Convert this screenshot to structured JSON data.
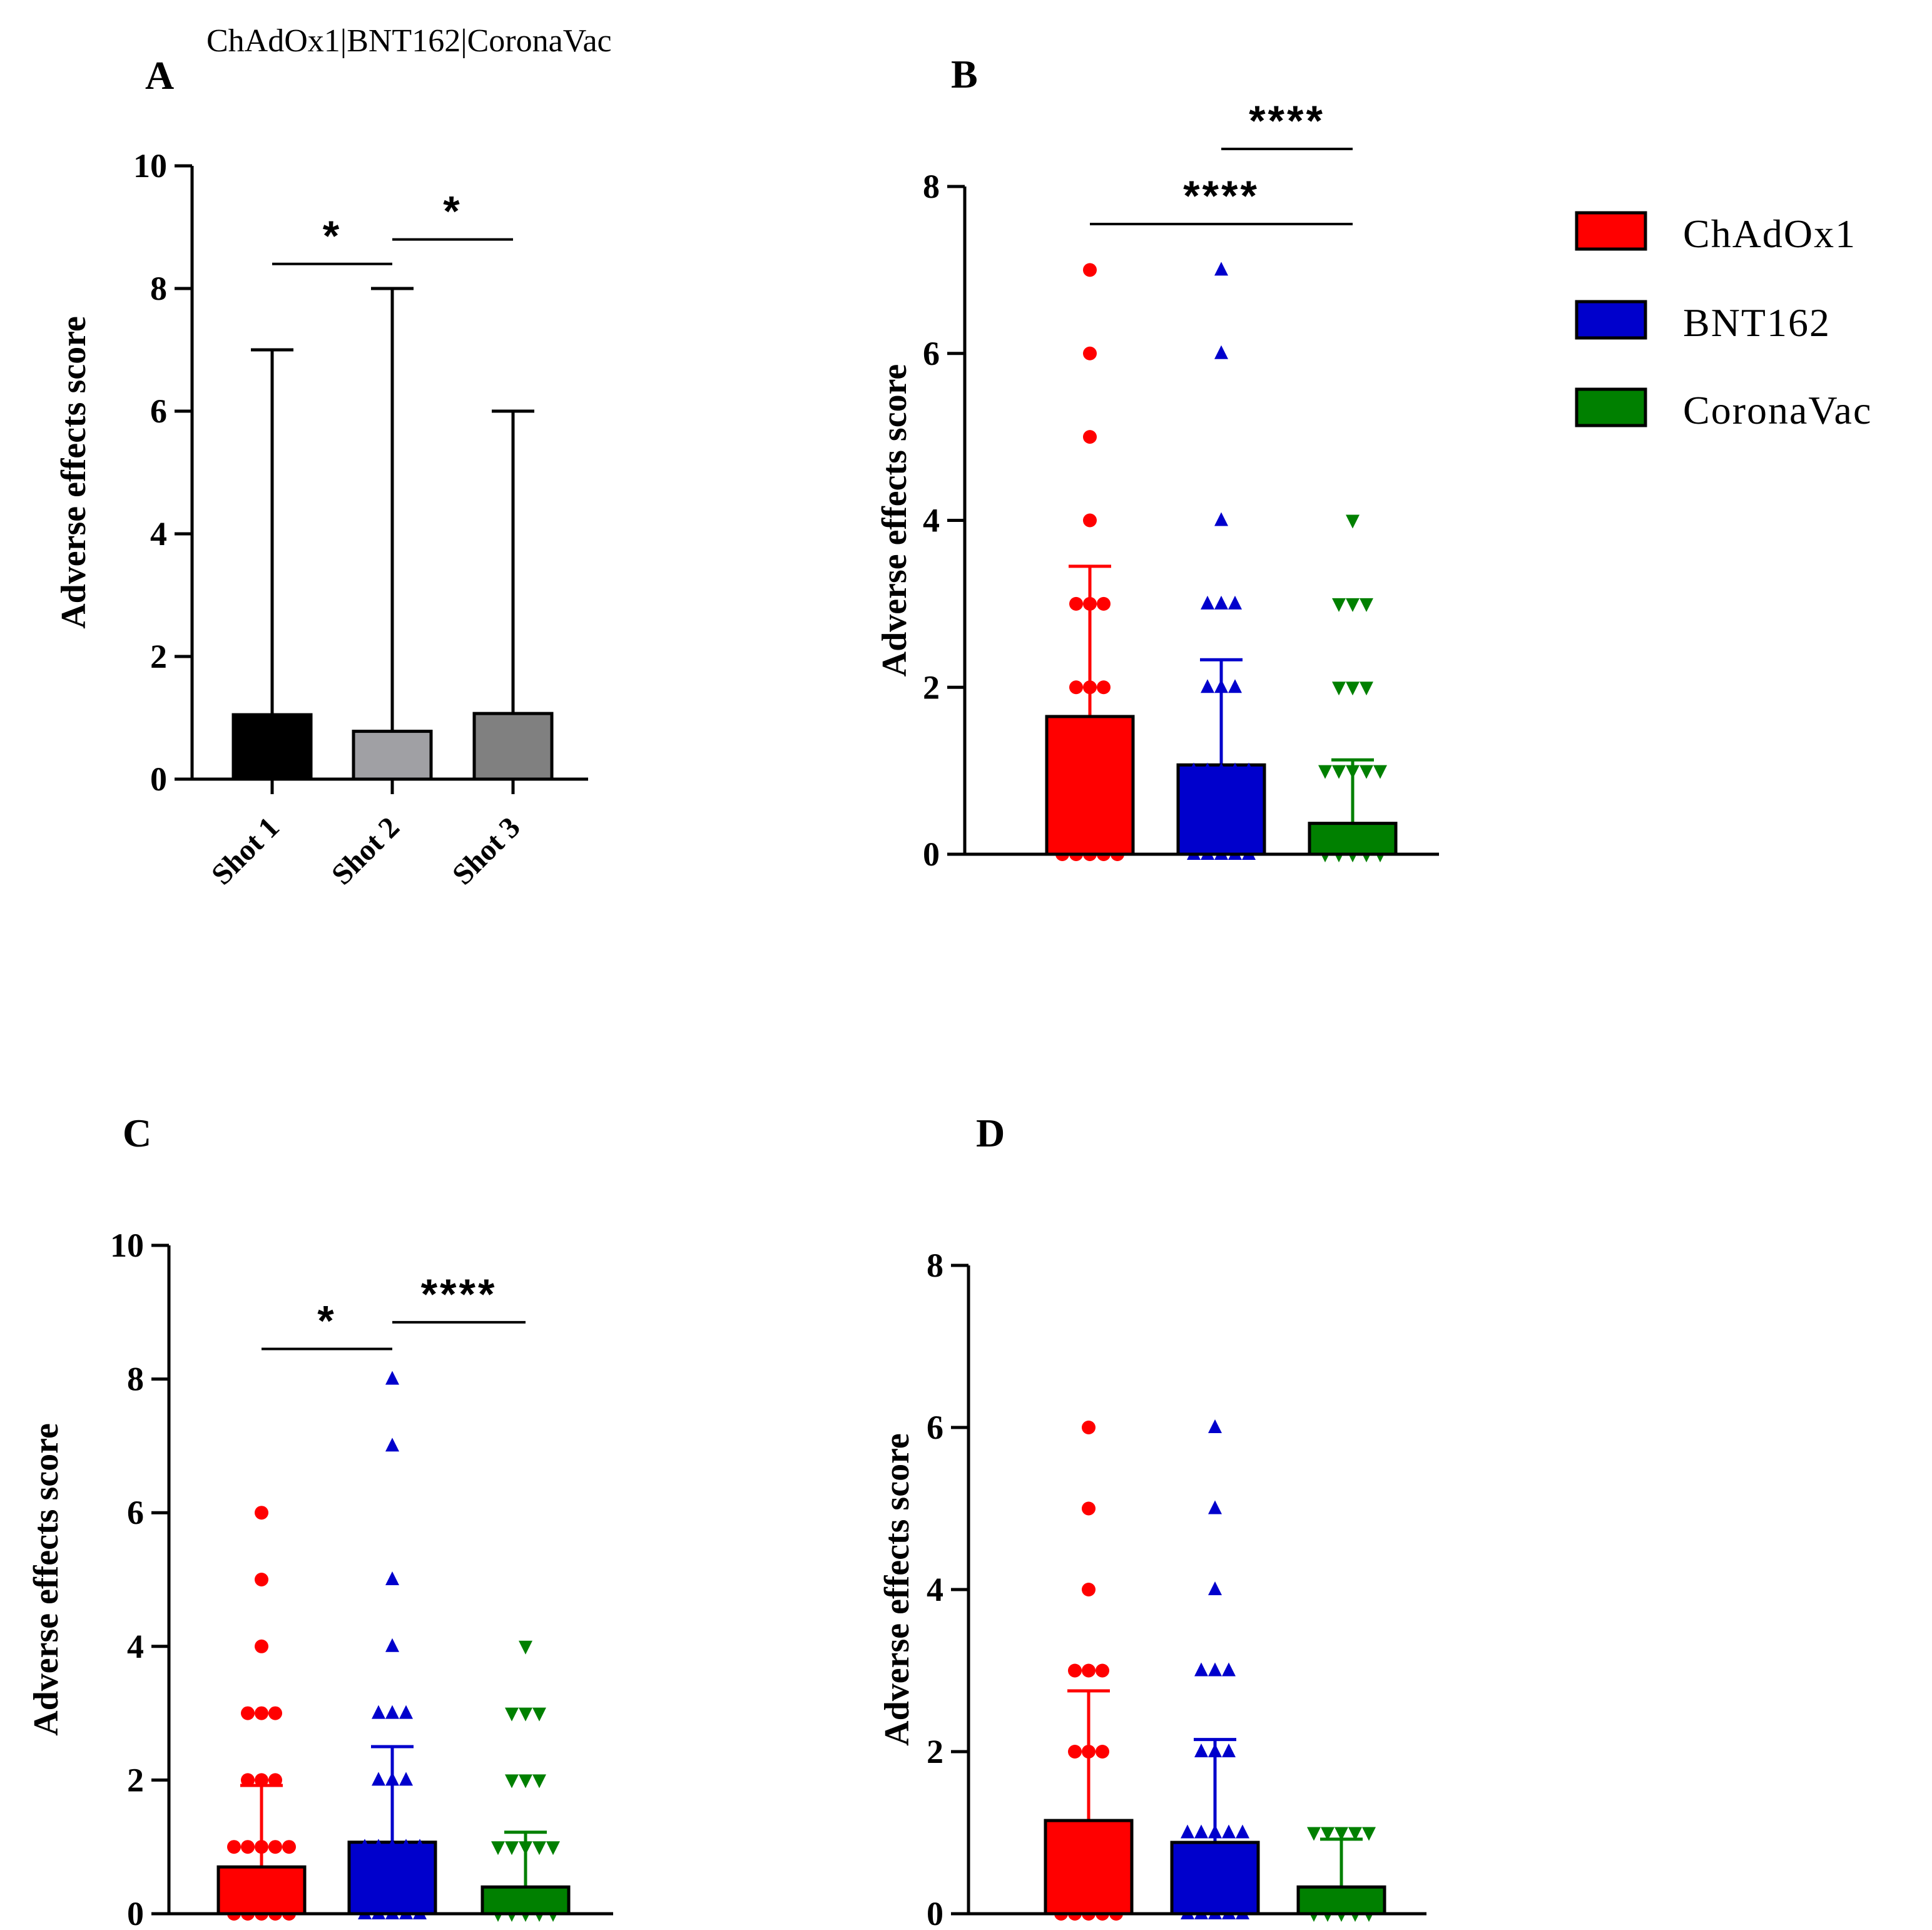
{
  "figure": {
    "subtitle": "ChAdOx1|BNT162|CoronaVac"
  },
  "legend": {
    "entries": [
      {
        "label": "ChAdOx1",
        "color": "#ff0000"
      },
      {
        "label": "BNT162",
        "color": "#0000cc"
      },
      {
        "label": "CoronaVac",
        "color": "#008000"
      }
    ]
  },
  "chart_data": [
    {
      "panel": "A",
      "type": "bar",
      "title": "",
      "ylabel": "Adverse effects score",
      "xlabel": "",
      "ylim": [
        0,
        10
      ],
      "yticks": [
        0,
        2,
        4,
        6,
        8,
        10
      ],
      "categories": [
        "Shot 1",
        "Shot 2",
        "Shot 3"
      ],
      "values": [
        1.05,
        0.78,
        1.07
      ],
      "error_top": [
        7,
        8,
        6
      ],
      "colors": [
        "#000000",
        "#a0a0a4",
        "#808080"
      ],
      "significance": [
        {
          "from": 0,
          "to": 1,
          "label": "*",
          "y": 8.4
        },
        {
          "from": 1,
          "to": 2,
          "label": "*",
          "y": 8.8
        }
      ]
    },
    {
      "panel": "B",
      "type": "bar",
      "title": "",
      "ylabel": "Adverse effects score",
      "xlabel": "",
      "ylim": [
        0,
        8
      ],
      "yticks": [
        0,
        2,
        4,
        6,
        8
      ],
      "categories": [
        "ChAdOx1",
        "BNT162",
        "CoronaVac"
      ],
      "values": [
        1.65,
        1.07,
        0.37
      ],
      "error_top": [
        3.45,
        2.33,
        1.13
      ],
      "colors": [
        "#ff0000",
        "#0000cc",
        "#008000"
      ],
      "points": [
        [
          0,
          1,
          2,
          3,
          4,
          5,
          6,
          7
        ],
        [
          0,
          1,
          2,
          3,
          4,
          6,
          7
        ],
        [
          0,
          1,
          2,
          3,
          4
        ]
      ],
      "significance": [
        {
          "from": 0,
          "to": 2,
          "label": "****",
          "y": 7.55
        },
        {
          "from": 1,
          "to": 2,
          "label": "****",
          "y": 8.45
        }
      ]
    },
    {
      "panel": "C",
      "type": "bar",
      "title": "",
      "ylabel": "Adverse effects score",
      "xlabel": "",
      "ylim": [
        0,
        10
      ],
      "yticks": [
        0,
        2,
        4,
        6,
        8,
        10
      ],
      "categories": [
        "ChAdOx1",
        "BNT162",
        "CoronaVac"
      ],
      "values": [
        0.7,
        1.07,
        0.4
      ],
      "error_top": [
        1.92,
        2.5,
        1.22
      ],
      "colors": [
        "#ff0000",
        "#0000cc",
        "#008000"
      ],
      "points": [
        [
          0,
          1,
          2,
          3,
          4,
          5,
          6
        ],
        [
          0,
          1,
          2,
          3,
          4,
          5,
          7,
          8
        ],
        [
          0,
          1,
          2,
          3,
          4
        ]
      ],
      "significance": [
        {
          "from": 0,
          "to": 1,
          "label": "*",
          "y": 8.45
        },
        {
          "from": 1,
          "to": 2,
          "label": "****",
          "y": 8.85
        }
      ]
    },
    {
      "panel": "D",
      "type": "bar",
      "title": "",
      "ylabel": "Adverse effects score",
      "xlabel": "",
      "ylim": [
        0,
        8
      ],
      "yticks": [
        0,
        2,
        4,
        6,
        8
      ],
      "categories": [
        "ChAdOx1",
        "BNT162",
        "CoronaVac"
      ],
      "values": [
        1.15,
        0.88,
        0.33
      ],
      "error_top": [
        2.75,
        2.15,
        0.92
      ],
      "colors": [
        "#ff0000",
        "#0000cc",
        "#008000"
      ],
      "points": [
        [
          0,
          1,
          2,
          3,
          4,
          5,
          6
        ],
        [
          0,
          1,
          2,
          3,
          4,
          5,
          6
        ],
        [
          0,
          1
        ]
      ],
      "significance": []
    }
  ]
}
